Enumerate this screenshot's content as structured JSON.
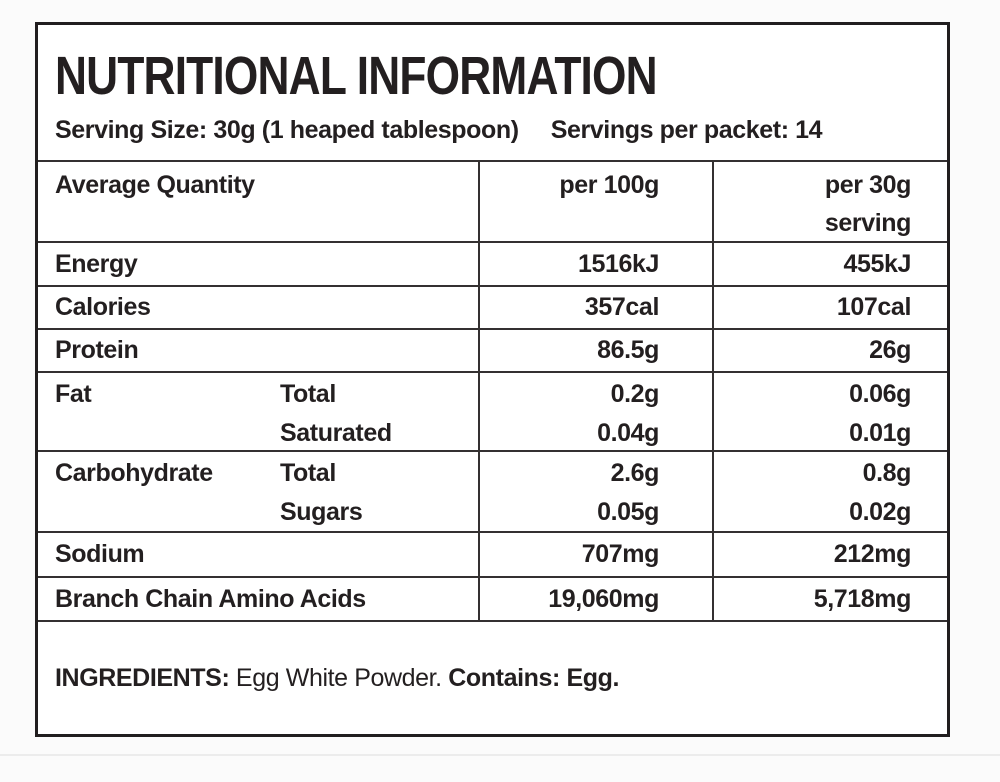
{
  "label": {
    "title": "NUTRITIONAL INFORMATION",
    "serving_size": "Serving Size: 30g (1 heaped tablespoon)",
    "servings_per_packet": "Servings per packet: 14"
  },
  "table": {
    "header": {
      "col1": "Average Quantity",
      "col2": "per 100g",
      "col3_line1": "per 30g",
      "col3_line2": "serving"
    },
    "rows": [
      {
        "label": "Energy",
        "per100": "1516kJ",
        "per30": "455kJ"
      },
      {
        "label": "Calories",
        "per100": "357cal",
        "per30": "107cal"
      },
      {
        "label": "Protein",
        "per100": "86.5g",
        "per30": "26g"
      },
      {
        "label": "Fat",
        "sub1": "Total",
        "sub2": "Saturated",
        "per100_1": "0.2g",
        "per100_2": "0.04g",
        "per30_1": "0.06g",
        "per30_2": "0.01g"
      },
      {
        "label": "Carbohydrate",
        "sub1": "Total",
        "sub2": "Sugars",
        "per100_1": "2.6g",
        "per100_2": "0.05g",
        "per30_1": "0.8g",
        "per30_2": "0.02g"
      },
      {
        "label": "Sodium",
        "per100": "707mg",
        "per30": "212mg"
      },
      {
        "label": "Branch Chain Amino Acids",
        "per100": "19,060mg",
        "per30": "5,718mg"
      }
    ]
  },
  "ingredients": {
    "label": "INGREDIENTS:",
    "text": " Egg White Powder. ",
    "contains": "Contains: Egg."
  },
  "colors": {
    "text": "#231f20",
    "border": "#211e1f",
    "grid_line": "#343031",
    "label_background": "#ffffff",
    "page_background": "#fbfbfb"
  }
}
